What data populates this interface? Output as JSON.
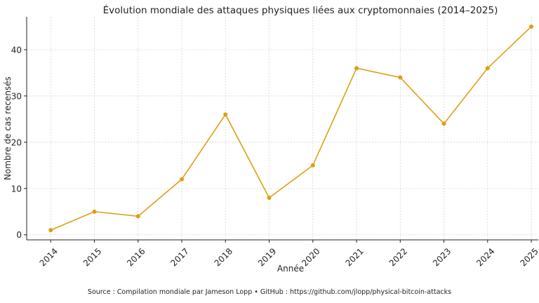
{
  "chart_data": {
    "type": "line",
    "title": "Évolution mondiale des attaques physiques liées aux cryptomonnaies (2014–2025)",
    "xlabel": "Année",
    "ylabel": "Nombre de cas recensés",
    "x": [
      2014,
      2015,
      2016,
      2017,
      2018,
      2019,
      2020,
      2021,
      2022,
      2023,
      2024,
      2025
    ],
    "values": [
      1,
      5,
      4,
      12,
      26,
      8,
      15,
      36,
      34,
      24,
      36,
      45
    ],
    "xlim": [
      2013.45,
      2025.16
    ],
    "ylim": [
      -1.1,
      47.1
    ],
    "yticks": [
      0,
      10,
      20,
      30,
      40
    ],
    "xticks": [
      "2014",
      "2015",
      "2016",
      "2017",
      "2018",
      "2019",
      "2020",
      "2021",
      "2022",
      "2023",
      "2024",
      "2025"
    ],
    "grid": true,
    "line_color": "#DAA010",
    "marker": "circle"
  },
  "footer": {
    "source": "Source : Compilation mondiale par Jameson Lopp • GitHub : https://github.com/jlopp/physical-bitcoin-attacks"
  }
}
